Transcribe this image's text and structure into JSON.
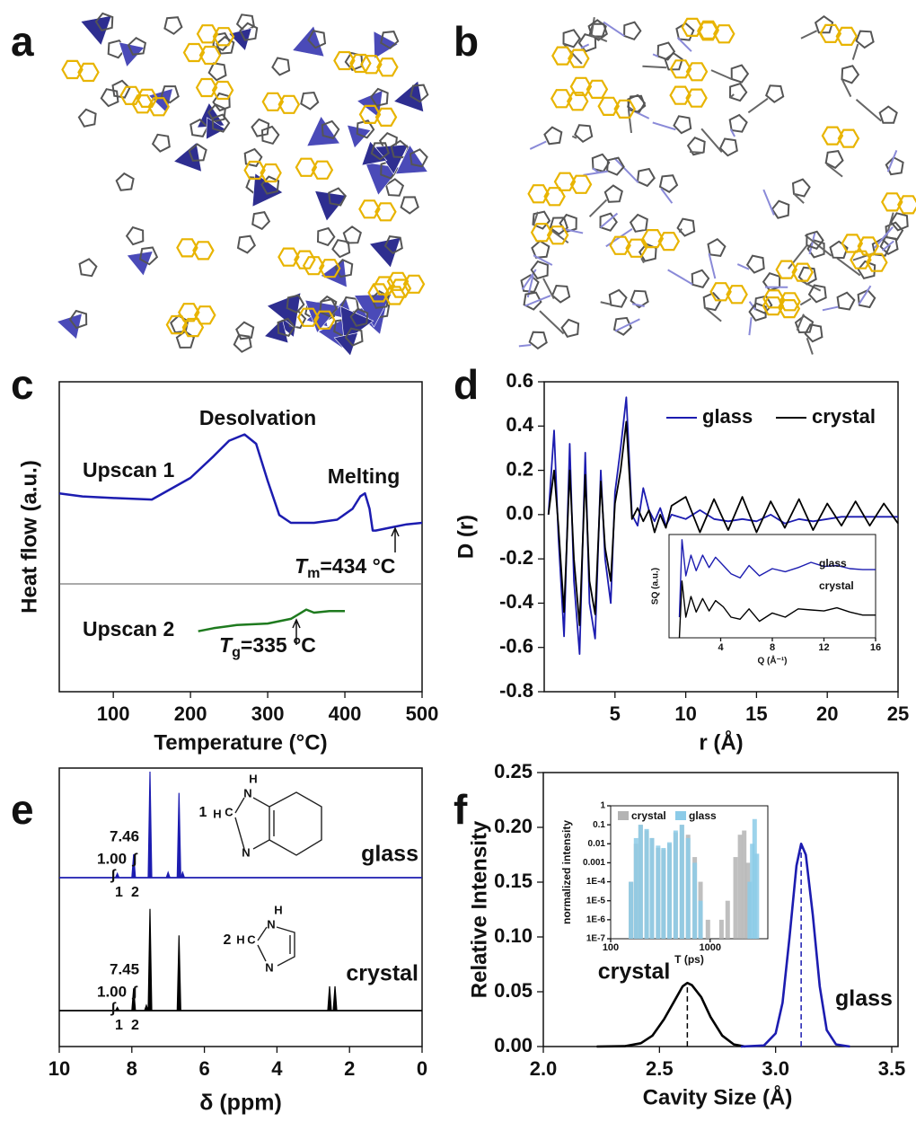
{
  "structures": [
    {
      "label": "a"
    },
    {
      "label": "b"
    }
  ],
  "chart_data": [
    {
      "label": "c",
      "type": "line",
      "x_label": "Temperature (°C)",
      "y_label": "Heat flow (a.u.)",
      "xlim": [
        30,
        500
      ],
      "xticks": [
        100,
        200,
        300,
        400,
        500
      ],
      "ylim": [
        0,
        10
      ],
      "series": [
        {
          "name": "Upscan 1",
          "color": "#1c1cb0",
          "x": [
            30,
            60,
            100,
            150,
            200,
            230,
            250,
            270,
            285,
            300,
            315,
            330,
            360,
            390,
            410,
            420,
            426,
            432,
            436,
            440,
            460,
            480,
            500
          ],
          "values": [
            6.4,
            6.3,
            6.25,
            6.2,
            6.9,
            7.6,
            8.1,
            8.3,
            8.0,
            6.8,
            5.7,
            5.45,
            5.45,
            5.55,
            5.9,
            6.3,
            6.4,
            5.9,
            5.2,
            5.2,
            5.3,
            5.4,
            5.45
          ]
        },
        {
          "name": "Upscan 2",
          "color": "#1e7a1e",
          "x": [
            210,
            230,
            260,
            300,
            330,
            340,
            350,
            360,
            380,
            400
          ],
          "values": [
            1.95,
            2.05,
            2.15,
            2.2,
            2.35,
            2.5,
            2.65,
            2.55,
            2.6,
            2.6
          ]
        }
      ],
      "annotations": {
        "desolvation": "Desolvation",
        "melting": "Melting",
        "tm": {
          "symbol": "T",
          "subscript": "m",
          "text": "=434 °C"
        },
        "tg": {
          "symbol": "T",
          "subscript": "g",
          "text": "=335 °C"
        }
      }
    },
    {
      "label": "d",
      "type": "line",
      "x_label": "r (Å)",
      "y_label": "D (r)",
      "legend": "upper right",
      "xlim": [
        0,
        25
      ],
      "xticks": [
        5,
        10,
        15,
        20,
        25
      ],
      "ylim": [
        -0.8,
        0.6
      ],
      "yticks": [
        0.6,
        0.4,
        0.2,
        {
          "value": 0,
          "label": "0.0"
        },
        -0.2,
        -0.4,
        -0.6,
        -0.8
      ],
      "series": [
        {
          "name": "glass",
          "color": "#1c1cb0",
          "x": [
            0.3,
            0.7,
            1.0,
            1.4,
            1.8,
            2.1,
            2.5,
            2.9,
            3.2,
            3.6,
            4.0,
            4.3,
            4.7,
            5.0,
            5.4,
            5.8,
            6.2,
            6.6,
            7.0,
            7.4,
            7.8,
            8.2,
            8.6,
            9.0,
            10,
            11,
            12,
            13,
            14,
            15,
            16,
            17,
            18,
            19,
            20,
            21,
            22,
            23,
            24,
            25
          ],
          "values": [
            0,
            0.38,
            -0.1,
            -0.55,
            0.32,
            -0.3,
            -0.63,
            0.28,
            -0.4,
            -0.56,
            0.2,
            -0.2,
            -0.4,
            0.1,
            0.3,
            0.53,
            0.0,
            -0.05,
            0.12,
            0.02,
            -0.03,
            0.03,
            -0.05,
            0,
            -0.02,
            0.02,
            -0.02,
            -0.03,
            -0.02,
            -0.03,
            0,
            -0.04,
            -0.02,
            -0.03,
            -0.02,
            -0.01,
            -0.01,
            -0.01,
            -0.01,
            -0.01
          ]
        },
        {
          "name": "crystal",
          "color": "#000000",
          "x": [
            0.3,
            0.7,
            1.0,
            1.4,
            1.8,
            2.1,
            2.5,
            2.9,
            3.2,
            3.6,
            4.0,
            4.3,
            4.7,
            5.0,
            5.4,
            5.8,
            6.2,
            6.6,
            7.0,
            7.4,
            7.8,
            8.2,
            8.6,
            9.0,
            10,
            11,
            12,
            13,
            14,
            15,
            16,
            17,
            18,
            19,
            20,
            21,
            22,
            23,
            24,
            25
          ],
          "values": [
            0,
            0.2,
            -0.05,
            -0.44,
            0.2,
            -0.2,
            -0.5,
            0.18,
            -0.3,
            -0.45,
            0.15,
            -0.15,
            -0.3,
            0.05,
            0.2,
            0.42,
            -0.02,
            0.03,
            -0.03,
            0.02,
            -0.08,
            0.0,
            -0.06,
            0.04,
            0.08,
            -0.08,
            0.07,
            -0.07,
            0.08,
            -0.08,
            0.06,
            -0.06,
            0.07,
            -0.07,
            0.05,
            -0.05,
            0.06,
            -0.05,
            0.05,
            -0.04
          ]
        }
      ],
      "inset": {
        "type": "line",
        "x_label": "Q (Å⁻¹)",
        "y_label": "SQ (a.u.)",
        "xlim": [
          0,
          16
        ],
        "xticks": [
          4,
          8,
          12,
          16
        ],
        "ylim": [
          0,
          10
        ],
        "series": [
          {
            "name": "glass",
            "color": "#1c1cb0",
            "x": [
              0.8,
              1.0,
              1.3,
              1.7,
              2.1,
              2.6,
              3.1,
              3.6,
              4.2,
              4.8,
              5.5,
              6.2,
              7,
              8,
              9,
              10,
              11,
              12,
              13,
              14,
              15,
              16
            ],
            "values": [
              2,
              9.5,
              6,
              8,
              6.5,
              8,
              6.8,
              7.8,
              7,
              6.2,
              5.8,
              7,
              6,
              6.7,
              6.4,
              6.8,
              7.3,
              6.9,
              7,
              6.7,
              6.6,
              6.6
            ]
          },
          {
            "name": "crystal",
            "color": "#000000",
            "x": [
              0.8,
              1.0,
              1.3,
              1.7,
              2.1,
              2.6,
              3.1,
              3.6,
              4.2,
              4.8,
              5.5,
              6.2,
              7,
              8,
              9,
              10,
              11,
              12,
              13,
              14,
              15,
              16
            ],
            "values": [
              0,
              5.5,
              2,
              4,
              2.5,
              3.8,
              2.6,
              3.6,
              3,
              2,
              1.8,
              2.8,
              1.6,
              2.4,
              2,
              2.8,
              2.7,
              2.6,
              2.9,
              2.5,
              2.2,
              2.2
            ]
          }
        ]
      }
    },
    {
      "label": "e",
      "type": "spectrum",
      "x_label": "δ (ppm)",
      "xlim": [
        10,
        0
      ],
      "xticks": [
        10,
        8,
        6,
        4,
        2,
        0
      ],
      "ylim": [
        0,
        1
      ],
      "series": [
        {
          "name": "glass",
          "color": "#1c1cb0",
          "x": [
            8.4,
            7.95,
            7.5,
            7.0,
            6.7,
            6.6
          ],
          "values": [
            0.04,
            0.22,
            1.0,
            0.05,
            0.8,
            0.05
          ],
          "annotations": {
            "shift": "7.46",
            "integral": "1.00",
            "sign": "∫",
            "sign2": "∫",
            "peaks": [
              "1",
              "2"
            ]
          },
          "molecule": [
            "1",
            "H",
            "C",
            "H",
            "N",
            "N"
          ]
        },
        {
          "name": "crystal",
          "color": "#000000",
          "x": [
            8.4,
            7.95,
            7.6,
            7.5,
            6.7,
            2.55,
            2.4
          ],
          "values": [
            0.03,
            0.21,
            0.05,
            0.96,
            0.71,
            0.23,
            0.23
          ],
          "annotations": {
            "shift": "7.45",
            "integral": "1.00",
            "sign": "∫",
            "sign2": "∫",
            "peaks": [
              "1",
              "2"
            ]
          },
          "molecule": [
            "2",
            "H",
            "C",
            "H",
            "N",
            "N"
          ]
        }
      ]
    },
    {
      "label": "f",
      "type": "line",
      "x_label": "Cavity Size (Å)",
      "y_label": "Relative Intensity",
      "xlim": [
        2.0,
        3.5
      ],
      "xticks": [
        {
          "value": 2,
          "label": "2.0"
        },
        2.5,
        {
          "value": 3,
          "label": "3.0"
        },
        3.5
      ],
      "ylim": [
        0,
        0.25
      ],
      "yticks": [
        {
          "value": 0,
          "label": "0.00"
        },
        0.05,
        {
          "value": 0.1,
          "label": "0.10"
        },
        0.15,
        {
          "value": 0.2,
          "label": "0.20"
        },
        0.25
      ],
      "series": [
        {
          "name": "crystal",
          "color": "#000000",
          "x": [
            2.23,
            2.35,
            2.42,
            2.47,
            2.52,
            2.56,
            2.6,
            2.62,
            2.64,
            2.68,
            2.72,
            2.77,
            2.82,
            2.87
          ],
          "values": [
            0,
            0.0003,
            0.003,
            0.01,
            0.025,
            0.04,
            0.055,
            0.058,
            0.056,
            0.045,
            0.027,
            0.01,
            0.002,
            0
          ],
          "peak": 2.62
        },
        {
          "name": "glass",
          "color": "#1c1cb0",
          "x": [
            2.85,
            2.95,
            3.0,
            3.03,
            3.06,
            3.09,
            3.11,
            3.13,
            3.16,
            3.19,
            3.22,
            3.26,
            3.32
          ],
          "values": [
            0,
            0.001,
            0.012,
            0.04,
            0.1,
            0.165,
            0.185,
            0.175,
            0.12,
            0.055,
            0.015,
            0.002,
            0
          ],
          "peak": 3.11
        }
      ],
      "inset": {
        "type": "bar",
        "x_label": "T (ps)",
        "y_label": "normalized intensity",
        "log_x": true,
        "log_y": true,
        "xlim": [
          100,
          3800
        ],
        "xticks": [
          100,
          1000
        ],
        "ylim": [
          1e-07,
          1
        ],
        "yticks": [
          1,
          0.1,
          0.01,
          0.001,
          {
            "value": 0.0001,
            "label": "1E-4"
          },
          {
            "value": 1e-05,
            "label": "1E-5"
          },
          {
            "value": 1e-06,
            "label": "1E-6"
          },
          {
            "value": 1e-07,
            "label": "1E-7"
          }
        ],
        "series": [
          {
            "name": "crystal",
            "color": "#b4b4b4",
            "x": [
              160,
              180,
              200,
              230,
              260,
              300,
              340,
              390,
              450,
              520,
              600,
              700,
              800,
              950,
              1100,
              1300,
              1500,
              1800,
              2000,
              2200,
              2400
            ],
            "values": [
              0.0001,
              0.01,
              0.1,
              0.05,
              0.02,
              0.006,
              0.005,
              0.01,
              0.04,
              0.1,
              0.03,
              0.002,
              0.0001,
              1e-06,
              1e-07,
              1e-06,
              1e-05,
              0.002,
              0.03,
              0.05,
              0.001
            ]
          },
          {
            "name": "glass",
            "color": "#8ccbe8",
            "x": [
              160,
              180,
              200,
              230,
              260,
              300,
              340,
              390,
              450,
              520,
              600,
              700,
              800,
              2500,
              2650,
              2800,
              2950
            ],
            "values": [
              0.0001,
              0.02,
              0.1,
              0.06,
              0.02,
              0.008,
              0.006,
              0.012,
              0.05,
              0.1,
              0.02,
              0.001,
              1e-05,
              0.0001,
              0.01,
              0.2,
              0.003
            ]
          }
        ]
      }
    }
  ]
}
